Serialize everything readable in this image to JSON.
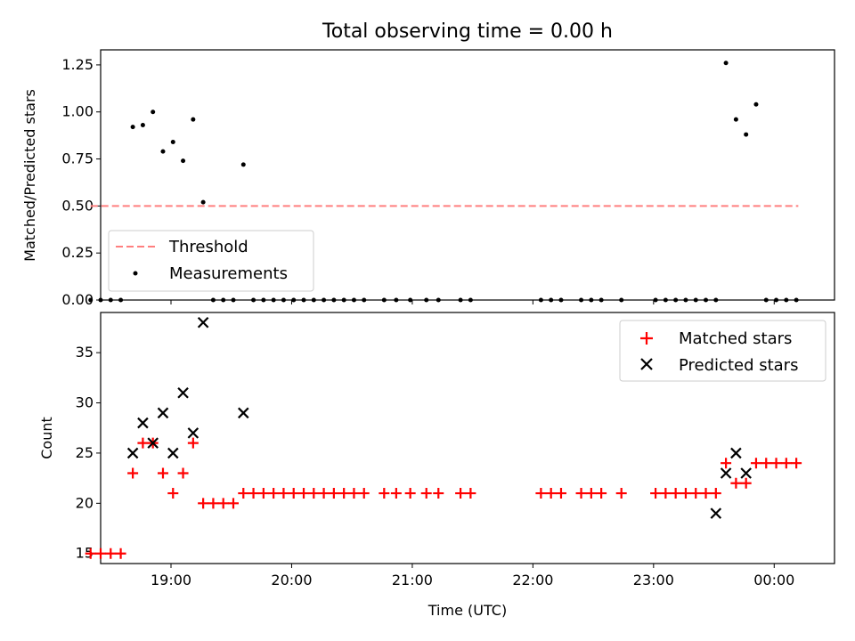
{
  "chart_data": [
    {
      "type": "scatter",
      "title": "Total observing time = 0.00 h",
      "xlabel": "",
      "ylabel": "Matched/Predicted stars",
      "ylim": [
        0,
        1.33
      ],
      "xlim": [
        "18:25",
        "00:30"
      ],
      "yticks": [
        0.0,
        0.25,
        0.5,
        0.75,
        1.0,
        1.25
      ],
      "ytick_labels": [
        "0.00",
        "0.25",
        "0.50",
        "0.75",
        "1.00",
        "1.25"
      ],
      "legend": {
        "position": "lower-left",
        "entries": [
          "Threshold",
          "Measurements"
        ]
      },
      "threshold": {
        "name": "Threshold",
        "y": 0.5,
        "x_start": "18:20",
        "x_end": "00:12",
        "color": "#ff7f7f"
      },
      "series": [
        {
          "name": "Measurements",
          "color": "#000000",
          "x": [
            "18:20",
            "18:25",
            "18:30",
            "18:35",
            "18:41",
            "18:46",
            "18:51",
            "18:56",
            "19:01",
            "19:06",
            "19:11",
            "19:16",
            "19:21",
            "19:26",
            "19:31",
            "19:36",
            "19:41",
            "19:46",
            "19:51",
            "19:56",
            "20:01",
            "20:06",
            "20:11",
            "20:16",
            "20:21",
            "20:26",
            "20:31",
            "20:36",
            "20:46",
            "20:52",
            "20:59",
            "21:07",
            "21:13",
            "21:24",
            "21:29",
            "22:04",
            "22:09",
            "22:14",
            "22:24",
            "22:29",
            "22:34",
            "22:44",
            "23:01",
            "23:06",
            "23:11",
            "23:16",
            "23:21",
            "23:26",
            "23:31",
            "23:36",
            "23:41",
            "23:46",
            "23:51",
            "23:56",
            "00:01",
            "00:06",
            "00:11"
          ],
          "y": [
            0,
            0,
            0,
            0,
            0.92,
            0.93,
            1.0,
            0.79,
            0.84,
            0.74,
            0.96,
            0.52,
            0,
            0,
            0,
            0.72,
            0,
            0,
            0,
            0,
            0,
            0,
            0,
            0,
            0,
            0,
            0,
            0,
            0,
            0,
            0,
            0,
            0,
            0,
            0,
            0,
            0,
            0,
            0,
            0,
            0,
            0,
            0,
            0,
            0,
            0,
            0,
            0,
            0,
            1.26,
            0.96,
            0.88,
            1.04,
            0,
            0,
            0,
            0
          ]
        }
      ]
    },
    {
      "type": "scatter",
      "title": "",
      "xlabel": "Time (UTC)",
      "ylabel": "Count",
      "ylim": [
        14,
        39
      ],
      "xlim": [
        "18:25",
        "00:30"
      ],
      "yticks": [
        15,
        20,
        25,
        30,
        35
      ],
      "ytick_labels": [
        "15",
        "20",
        "25",
        "30",
        "35"
      ],
      "xticks": [
        "19:00",
        "20:00",
        "21:00",
        "22:00",
        "23:00",
        "00:00"
      ],
      "xtick_labels": [
        "19:00",
        "20:00",
        "21:00",
        "22:00",
        "23:00",
        "00:00"
      ],
      "legend": {
        "position": "top-right",
        "entries": [
          "Matched stars",
          "Predicted stars"
        ]
      },
      "series": [
        {
          "name": "Matched stars",
          "marker": "plus",
          "color": "#ff0000",
          "x": [
            "18:20",
            "18:25",
            "18:30",
            "18:35",
            "18:41",
            "18:46",
            "18:51",
            "18:56",
            "19:01",
            "19:06",
            "19:11",
            "19:16",
            "19:21",
            "19:26",
            "19:31",
            "19:36",
            "19:41",
            "19:46",
            "19:51",
            "19:56",
            "20:01",
            "20:06",
            "20:11",
            "20:16",
            "20:21",
            "20:26",
            "20:31",
            "20:36",
            "20:46",
            "20:52",
            "20:59",
            "21:07",
            "21:13",
            "21:24",
            "21:29",
            "22:04",
            "22:09",
            "22:14",
            "22:24",
            "22:29",
            "22:34",
            "22:44",
            "23:01",
            "23:06",
            "23:11",
            "23:16",
            "23:21",
            "23:26",
            "23:31",
            "23:36",
            "23:41",
            "23:46",
            "23:51",
            "23:56",
            "00:01",
            "00:06",
            "00:11"
          ],
          "y": [
            15,
            15,
            15,
            15,
            23,
            26,
            26,
            23,
            21,
            23,
            26,
            20,
            20,
            20,
            20,
            21,
            21,
            21,
            21,
            21,
            21,
            21,
            21,
            21,
            21,
            21,
            21,
            21,
            21,
            21,
            21,
            21,
            21,
            21,
            21,
            21,
            21,
            21,
            21,
            21,
            21,
            21,
            21,
            21,
            21,
            21,
            21,
            21,
            21,
            24,
            22,
            22,
            24,
            24,
            24,
            24,
            24
          ]
        },
        {
          "name": "Predicted stars",
          "marker": "x",
          "color": "#000000",
          "x": [
            "18:41",
            "18:46",
            "18:51",
            "18:56",
            "19:01",
            "19:06",
            "19:11",
            "19:16",
            "19:36",
            "23:31",
            "23:36",
            "23:41",
            "23:46"
          ],
          "y": [
            25,
            28,
            26,
            29,
            25,
            31,
            27,
            38,
            29,
            19,
            23,
            25,
            23
          ]
        }
      ]
    }
  ]
}
